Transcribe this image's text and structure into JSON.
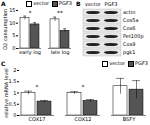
{
  "chart_data": [
    {
      "type": "bar",
      "title": "A",
      "categories": [
        "early log",
        "late log"
      ],
      "series": [
        {
          "name": "vector",
          "color": "#ffffff",
          "values": [
            12,
            11.5
          ],
          "errors": [
            0.8,
            0.9
          ]
        },
        {
          "name": "PGF3",
          "color": "#555555",
          "values": [
            9.5,
            7
          ],
          "errors": [
            0.7,
            0.8
          ]
        }
      ],
      "ylabel": "O2 consumption",
      "ylim": [
        0,
        15
      ],
      "yticks": [
        0,
        5,
        10,
        15
      ],
      "legend": "top-right",
      "annotations": [
        {
          "text": "*",
          "x": "early log",
          "y": 14
        },
        {
          "text": "**",
          "x": "late log",
          "y": 14
        }
      ]
    },
    {
      "type": "bar",
      "title": "C",
      "categories": [
        "COX17",
        "COX12",
        "BSFY"
      ],
      "series": [
        {
          "name": "vector",
          "color": "#ffffff",
          "values": [
            1,
            1,
            1.3
          ],
          "errors": [
            0.08,
            0.06,
            0.35
          ]
        },
        {
          "name": "PGF3",
          "color": "#555555",
          "values": [
            0.62,
            0.65,
            1.15
          ],
          "errors": [
            0.05,
            0.06,
            0.4
          ]
        }
      ],
      "ylabel": "relative mRNA level",
      "ylim": [
        0,
        2
      ],
      "yticks": [
        0,
        0.5,
        1,
        1.5,
        2
      ],
      "legend": "top-right",
      "annotations": [
        {
          "text": "*",
          "x": "COX17",
          "y": 1.25
        },
        {
          "text": "*",
          "x": "COX12",
          "y": 1.25
        }
      ]
    }
  ],
  "blot": {
    "title": "B",
    "columns": [
      "vector",
      "PGF3"
    ],
    "rows": [
      "actin",
      "Cox5a",
      "Cox6",
      "Pet100p",
      "Cox9",
      "pgk1"
    ]
  }
}
